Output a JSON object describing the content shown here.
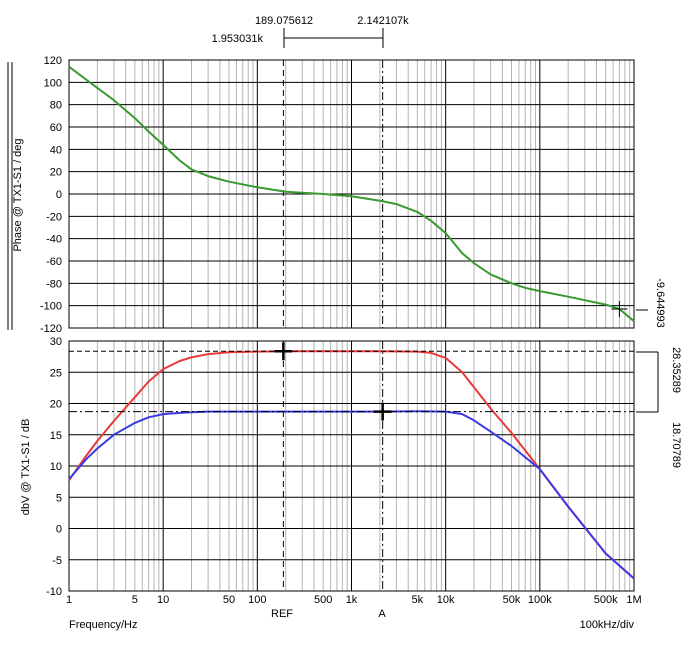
{
  "cursors": {
    "ref_label": "REF",
    "a_label": "A",
    "ref_freq": 189.075612,
    "a_freq": 2142.107,
    "ref_text": "189.075612",
    "a_text": "2.142107k",
    "delta_text": "1.953031k"
  },
  "footer": {
    "xlabel": "Frequency/Hz",
    "scale_label": "100kHz/div"
  },
  "colors": {
    "phase": "#3a9a32",
    "red": "#e83a3a",
    "blue": "#3a3ae8",
    "grid_major": "#000000",
    "grid_minor": "#b4b4b4"
  },
  "chart_data": [
    {
      "type": "line",
      "ylabel": "Phase @ TX1-S1 / deg",
      "xscale": "log",
      "xlim": [
        1,
        1000000
      ],
      "ylim": [
        -120,
        120
      ],
      "yticks": [
        120,
        100,
        80,
        60,
        40,
        20,
        0,
        -20,
        -40,
        -60,
        -80,
        -100,
        -120
      ],
      "readout": "-9.644993",
      "series": [
        {
          "color": "phase",
          "x": [
            1,
            2,
            3,
            5,
            7,
            10,
            15,
            20,
            30,
            50,
            100,
            200,
            500,
            1000,
            2000,
            3000,
            5000,
            7000,
            10000,
            15000,
            20000,
            30000,
            50000,
            70000,
            100000,
            200000,
            500000,
            700000,
            1000000
          ],
          "y": [
            114,
            95,
            84,
            68,
            56,
            44,
            30,
            22,
            16,
            11,
            6,
            2,
            0,
            -2,
            -6,
            -9,
            -16,
            -24,
            -35,
            -53,
            -62,
            -72,
            -80,
            -84,
            -87,
            -92,
            -99,
            -103,
            -114
          ]
        }
      ]
    },
    {
      "type": "line",
      "ylabel": "dbV @ TX1-S1 / dB",
      "xscale": "log",
      "xlim": [
        1,
        1000000
      ],
      "ylim": [
        -10,
        30
      ],
      "yticks": [
        30,
        25,
        20,
        15,
        10,
        5,
        0,
        -5,
        -10
      ],
      "readout_red": "28.35289",
      "readout_blue": "18.70789",
      "series": [
        {
          "color": "red",
          "x": [
            1,
            1.5,
            2,
            3,
            5,
            7,
            10,
            15,
            20,
            30,
            50,
            100,
            200,
            500,
            1000,
            2000,
            5000,
            7000,
            10000,
            15000,
            20000,
            30000,
            50000,
            100000,
            200000,
            500000,
            1000000
          ],
          "y": [
            7.7,
            11.5,
            14,
            17.2,
            21,
            23.5,
            25.5,
            26.8,
            27.4,
            27.9,
            28.2,
            28.3,
            28.35,
            28.35,
            28.35,
            28.35,
            28.3,
            28.1,
            27.3,
            25,
            22.6,
            19.2,
            15.3,
            9.5,
            3.5,
            -4,
            -8
          ]
        },
        {
          "color": "blue",
          "x": [
            1,
            1.5,
            2,
            3,
            5,
            7,
            10,
            15,
            20,
            30,
            50,
            100,
            200,
            500,
            1000,
            2000,
            5000,
            10000,
            15000,
            20000,
            30000,
            50000,
            100000,
            200000,
            500000,
            1000000
          ],
          "y": [
            7.9,
            11,
            12.8,
            15,
            16.9,
            17.8,
            18.3,
            18.5,
            18.6,
            18.7,
            18.7,
            18.7,
            18.7,
            18.7,
            18.7,
            18.7,
            18.75,
            18.7,
            18.3,
            17.3,
            15.5,
            13.2,
            9.5,
            3.5,
            -4,
            -8
          ]
        }
      ]
    }
  ],
  "xticks": [
    {
      "v": 1,
      "t": "1"
    },
    {
      "v": 5,
      "t": "5"
    },
    {
      "v": 10,
      "t": "10"
    },
    {
      "v": 50,
      "t": "50"
    },
    {
      "v": 100,
      "t": "100"
    },
    {
      "v": 500,
      "t": "500"
    },
    {
      "v": 1000,
      "t": "1k"
    },
    {
      "v": 5000,
      "t": "5k"
    },
    {
      "v": 10000,
      "t": "10k"
    },
    {
      "v": 50000,
      "t": "50k"
    },
    {
      "v": 100000,
      "t": "100k"
    },
    {
      "v": 500000,
      "t": "500k"
    },
    {
      "v": 1000000,
      "t": "1M"
    }
  ]
}
